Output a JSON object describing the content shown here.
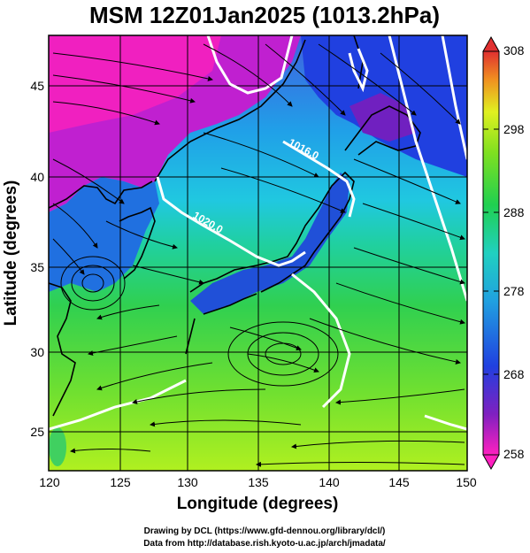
{
  "title": "MSM 12Z01Jan2025 (1013.2hPa)",
  "xaxis": {
    "label": "Longitude (degrees)",
    "ticks": [
      "120",
      "125",
      "130",
      "135",
      "140",
      "145",
      "150"
    ]
  },
  "yaxis": {
    "label": "Latitude  (degrees)",
    "ticks": [
      "25",
      "30",
      "35",
      "40",
      "45"
    ]
  },
  "colorbar": {
    "ticks": [
      "308",
      "298",
      "288",
      "278",
      "268",
      "258"
    ]
  },
  "isobar_labels": [
    "1016.0",
    "1020.0"
  ],
  "credits": {
    "line1": "Drawing by DCL (https://www.gfd-dennou.org/library/dcl/)",
    "line2": "Data from http://database.rish.kyoto-u.ac.jp/arch/jmadata/"
  },
  "colors": {
    "magenta": "#e020d0",
    "blue": "#2050e0",
    "cyan": "#20d0e0",
    "green": "#30d040",
    "yellow": "#d0f020",
    "red": "#e04030",
    "coast": "#000000",
    "isobar": "#ffffff"
  }
}
